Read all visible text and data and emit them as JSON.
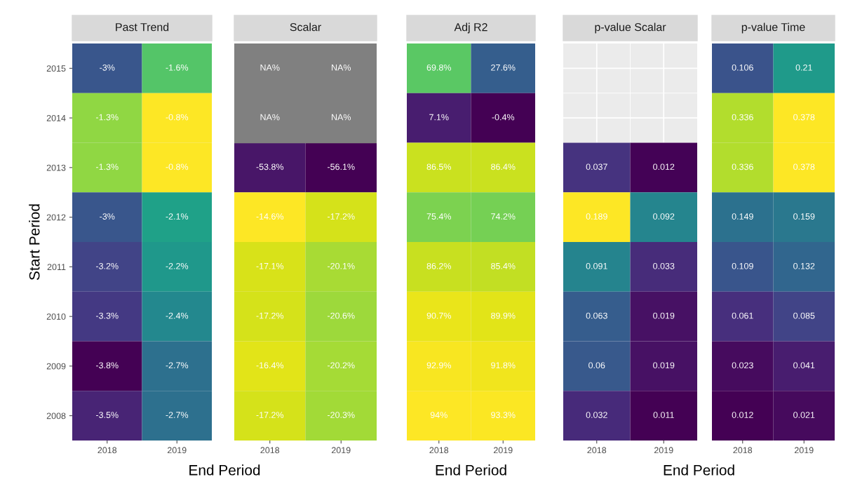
{
  "chart_data": [
    {
      "type": "heatmap",
      "title": "Past Trend",
      "xlabel": "End Period",
      "ylabel": "Start Period",
      "categories": [
        "2018",
        "2019"
      ],
      "y_categories": [
        "2015",
        "2014",
        "2013",
        "2012",
        "2011",
        "2010",
        "2009",
        "2008"
      ],
      "cells": [
        [
          -3,
          -1.6
        ],
        [
          -1.3,
          -0.8
        ],
        [
          -1.3,
          -0.8
        ],
        [
          -3,
          -2.1
        ],
        [
          -3.2,
          -2.2
        ],
        [
          -3.3,
          -2.4
        ],
        [
          -3.8,
          -2.7
        ],
        [
          -3.5,
          -2.7
        ]
      ],
      "cell_labels": [
        [
          "-3%",
          "-1.6%"
        ],
        [
          "-1.3%",
          "-0.8%"
        ],
        [
          "-1.3%",
          "-0.8%"
        ],
        [
          "-3%",
          "-2.1%"
        ],
        [
          "-3.2%",
          "-2.2%"
        ],
        [
          "-3.3%",
          "-2.4%"
        ],
        [
          "-3.8%",
          "-2.7%"
        ],
        [
          "-3.5%",
          "-2.7%"
        ]
      ]
    },
    {
      "type": "heatmap",
      "title": "Scalar",
      "categories": [
        "2018",
        "2019"
      ],
      "y_categories": [
        "2015",
        "2014",
        "2013",
        "2012",
        "2011",
        "2010",
        "2009",
        "2008"
      ],
      "tick_labels": "x",
      "cells": [
        [
          null,
          null
        ],
        [
          null,
          null
        ],
        [
          -53.8,
          -56.1
        ],
        [
          -14.6,
          -17.2
        ],
        [
          -17.1,
          -20.1
        ],
        [
          -17.2,
          -20.6
        ],
        [
          -16.4,
          -20.2
        ],
        [
          -17.2,
          -20.3
        ]
      ],
      "cell_labels": [
        [
          "NA%",
          "NA%"
        ],
        [
          "NA%",
          "NA%"
        ],
        [
          "-53.8%",
          "-56.1%"
        ],
        [
          "-14.6%",
          "-17.2%"
        ],
        [
          "-17.1%",
          "-20.1%"
        ],
        [
          "-17.2%",
          "-20.6%"
        ],
        [
          "-16.4%",
          "-20.2%"
        ],
        [
          "-17.2%",
          "-20.3%"
        ]
      ]
    },
    {
      "type": "heatmap",
      "title": "Adj R2",
      "xlabel": "End Period",
      "categories": [
        "2018",
        "2019"
      ],
      "y_categories": [
        "2015",
        "2014",
        "2013",
        "2012",
        "2011",
        "2010",
        "2009",
        "2008"
      ],
      "tick_labels": "x",
      "cells": [
        [
          69.8,
          27.6
        ],
        [
          7.1,
          -0.4
        ],
        [
          86.5,
          86.4
        ],
        [
          75.4,
          74.2
        ],
        [
          86.2,
          85.4
        ],
        [
          90.7,
          89.9
        ],
        [
          92.9,
          91.8
        ],
        [
          94,
          93.3
        ]
      ],
      "cell_labels": [
        [
          "69.8%",
          "27.6%"
        ],
        [
          "7.1%",
          "-0.4%"
        ],
        [
          "86.5%",
          "86.4%"
        ],
        [
          "75.4%",
          "74.2%"
        ],
        [
          "86.2%",
          "85.4%"
        ],
        [
          "90.7%",
          "89.9%"
        ],
        [
          "92.9%",
          "91.8%"
        ],
        [
          "94%",
          "93.3%"
        ]
      ]
    },
    {
      "type": "heatmap",
      "title": "p-value Scalar",
      "xlabel": "End Period",
      "categories": [
        "2018",
        "2019"
      ],
      "y_categories": [
        "2015",
        "2014",
        "2013",
        "2012",
        "2011",
        "2010",
        "2009",
        "2008"
      ],
      "grid": true,
      "tick_labels": "x",
      "data_labels": true,
      "cells": [
        [
          null,
          null
        ],
        [
          null,
          null
        ],
        [
          0.037,
          0.012
        ],
        [
          0.189,
          0.092
        ],
        [
          0.091,
          0.033
        ],
        [
          0.063,
          0.019
        ],
        [
          0.06,
          0.019
        ],
        [
          0.032,
          0.011
        ]
      ]
    },
    {
      "type": "heatmap",
      "title": "p-value Time",
      "categories": [
        "2018",
        "2019"
      ],
      "y_categories": [
        "2015",
        "2014",
        "2013",
        "2012",
        "2011",
        "2010",
        "2009",
        "2008"
      ],
      "tick_labels": "x",
      "data_labels": true,
      "cells": [
        [
          0.106,
          0.21
        ],
        [
          0.336,
          0.378
        ],
        [
          0.336,
          0.378
        ],
        [
          0.149,
          0.159
        ],
        [
          0.109,
          0.132
        ],
        [
          0.061,
          0.085
        ],
        [
          0.023,
          0.041
        ],
        [
          0.012,
          0.021
        ]
      ]
    }
  ]
}
